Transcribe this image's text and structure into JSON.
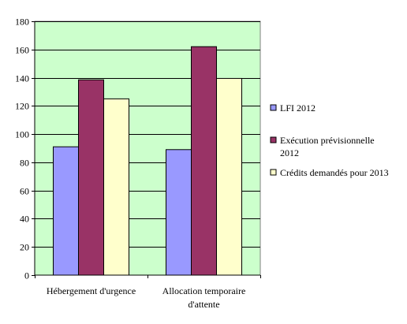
{
  "chart_data": {
    "type": "bar",
    "categories": [
      [
        "Hébergement d'urgence"
      ],
      [
        "Allocation temporaire",
        "d'attente"
      ]
    ],
    "series": [
      {
        "name": [
          "LFI 2012"
        ],
        "values": [
          91,
          89
        ],
        "color": "#9999ff"
      },
      {
        "name": [
          "Exécution prévisionnelle",
          "2012"
        ],
        "values": [
          138.5,
          162
        ],
        "color": "#993366"
      },
      {
        "name": [
          "Crédits demandés pour 2013"
        ],
        "values": [
          125,
          139.5
        ],
        "color": "#ffffcc"
      }
    ],
    "ylim": [
      0,
      180
    ],
    "yticks": [
      0,
      20,
      40,
      60,
      80,
      100,
      120,
      140,
      160,
      180
    ],
    "grid": true,
    "plot_background": "#ccffcc",
    "legend_position": "right"
  }
}
